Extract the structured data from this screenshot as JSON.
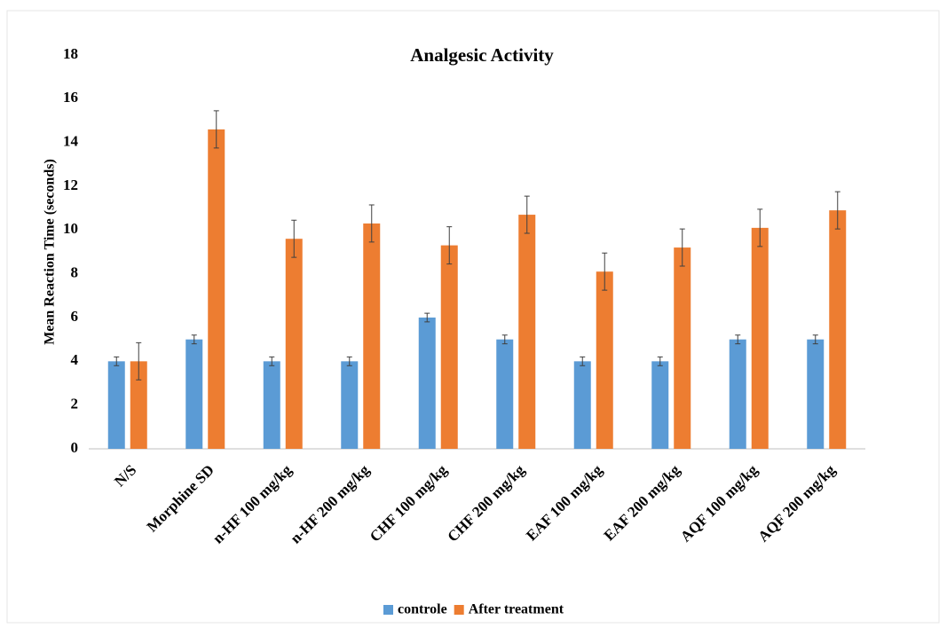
{
  "chart_data": {
    "type": "bar",
    "title": "Analgesic Activity",
    "y_label": "Mean Reaction Time (seconds)",
    "categories": [
      "N/S",
      "Morphine  SD",
      "n-HF 100 mg/kg",
      "n-HF 200 mg/kg",
      "CHF 100 mg/kg",
      "CHF 200 mg/kg",
      "EAF 100 mg/kg",
      "EAF 200 mg/kg",
      "AQF 100 mg/kg",
      "AQF 200 mg/kg"
    ],
    "series": [
      {
        "name": "controle",
        "color": "#5b9bd5",
        "values": [
          4,
          5,
          4,
          4,
          6,
          5,
          4,
          4,
          5,
          5
        ],
        "errors": [
          0.2,
          0.2,
          0.2,
          0.2,
          0.2,
          0.2,
          0.2,
          0.2,
          0.2,
          0.2
        ]
      },
      {
        "name": "After treatment",
        "color": "#ed7d31",
        "values": [
          4,
          14.6,
          9.6,
          10.3,
          9.3,
          10.7,
          8.1,
          9.2,
          10.1,
          10.9
        ],
        "errors": [
          0.85,
          0.85,
          0.85,
          0.85,
          0.85,
          0.85,
          0.85,
          0.85,
          0.85,
          0.85
        ]
      }
    ],
    "ylim": [
      0,
      18
    ],
    "yticks": [
      0,
      2,
      4,
      6,
      8,
      10,
      12,
      14,
      16,
      18
    ],
    "grid": false,
    "legend": "bottom"
  }
}
